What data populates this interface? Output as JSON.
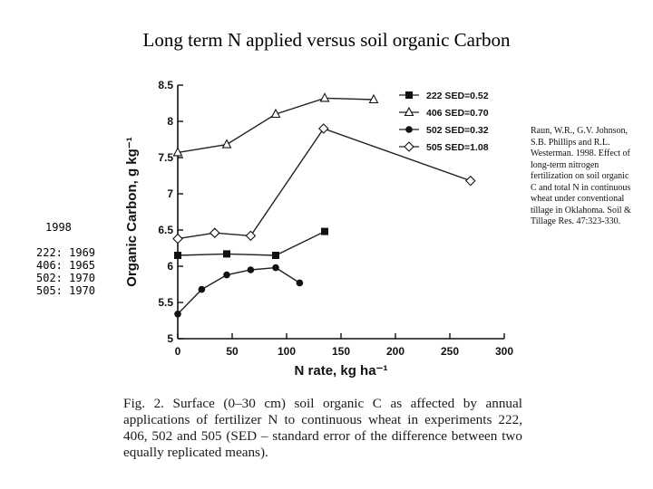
{
  "title": "Long term N applied versus soil organic Carbon",
  "side_note": {
    "year": "1998",
    "rows": [
      "222: 1969",
      "406: 1965",
      "502: 1970",
      "505: 1970"
    ]
  },
  "citation": "Raun, W.R., G.V. Johnson, S.B. Phillips and R.L. Westerman. 1998. Effect of long-term nitrogen fertilization on soil organic C and total N in continuous wheat under conventional tillage in Oklahoma. Soil & Tillage Res. 47:323-330.",
  "caption": "Fig. 2. Surface (0–30 cm) soil organic C as affected by annual applications of fertilizer N to continuous wheat in experiments 222, 406, 502 and 505 (SED – standard error of the difference between two equally replicated means).",
  "chart_data": {
    "type": "line",
    "xlabel": "N rate, kg ha⁻¹",
    "ylabel": "Organic Carbon, g kg⁻¹",
    "xlim": [
      0,
      300
    ],
    "ylim": [
      5,
      8.5
    ],
    "xticks": [
      0,
      50,
      100,
      150,
      200,
      250,
      300
    ],
    "yticks": [
      5,
      5.5,
      6,
      6.5,
      7,
      7.5,
      8,
      8.5
    ],
    "ytick_labels": [
      "5",
      "5.5",
      "6",
      "6.5",
      "7",
      "7.5",
      "8",
      "8.5"
    ],
    "legend_position": "top-right",
    "series": [
      {
        "name": "222 SED=0.52",
        "marker": "filled-square",
        "x": [
          0,
          45,
          90,
          135
        ],
        "y": [
          6.15,
          6.17,
          6.15,
          6.48
        ]
      },
      {
        "name": "406 SED=0.70",
        "marker": "open-triangle",
        "x": [
          0,
          45,
          90,
          135,
          180
        ],
        "y": [
          7.57,
          7.68,
          8.1,
          8.32,
          8.3
        ]
      },
      {
        "name": "502 SED=0.32",
        "marker": "filled-circle",
        "x": [
          0,
          22,
          45,
          67,
          90,
          112
        ],
        "y": [
          5.34,
          5.68,
          5.88,
          5.95,
          5.98,
          5.77
        ]
      },
      {
        "name": "505 SED=1.08",
        "marker": "open-diamond",
        "x": [
          0,
          34,
          67,
          134,
          269
        ],
        "y": [
          6.38,
          6.46,
          6.42,
          7.9,
          7.18
        ]
      }
    ]
  }
}
